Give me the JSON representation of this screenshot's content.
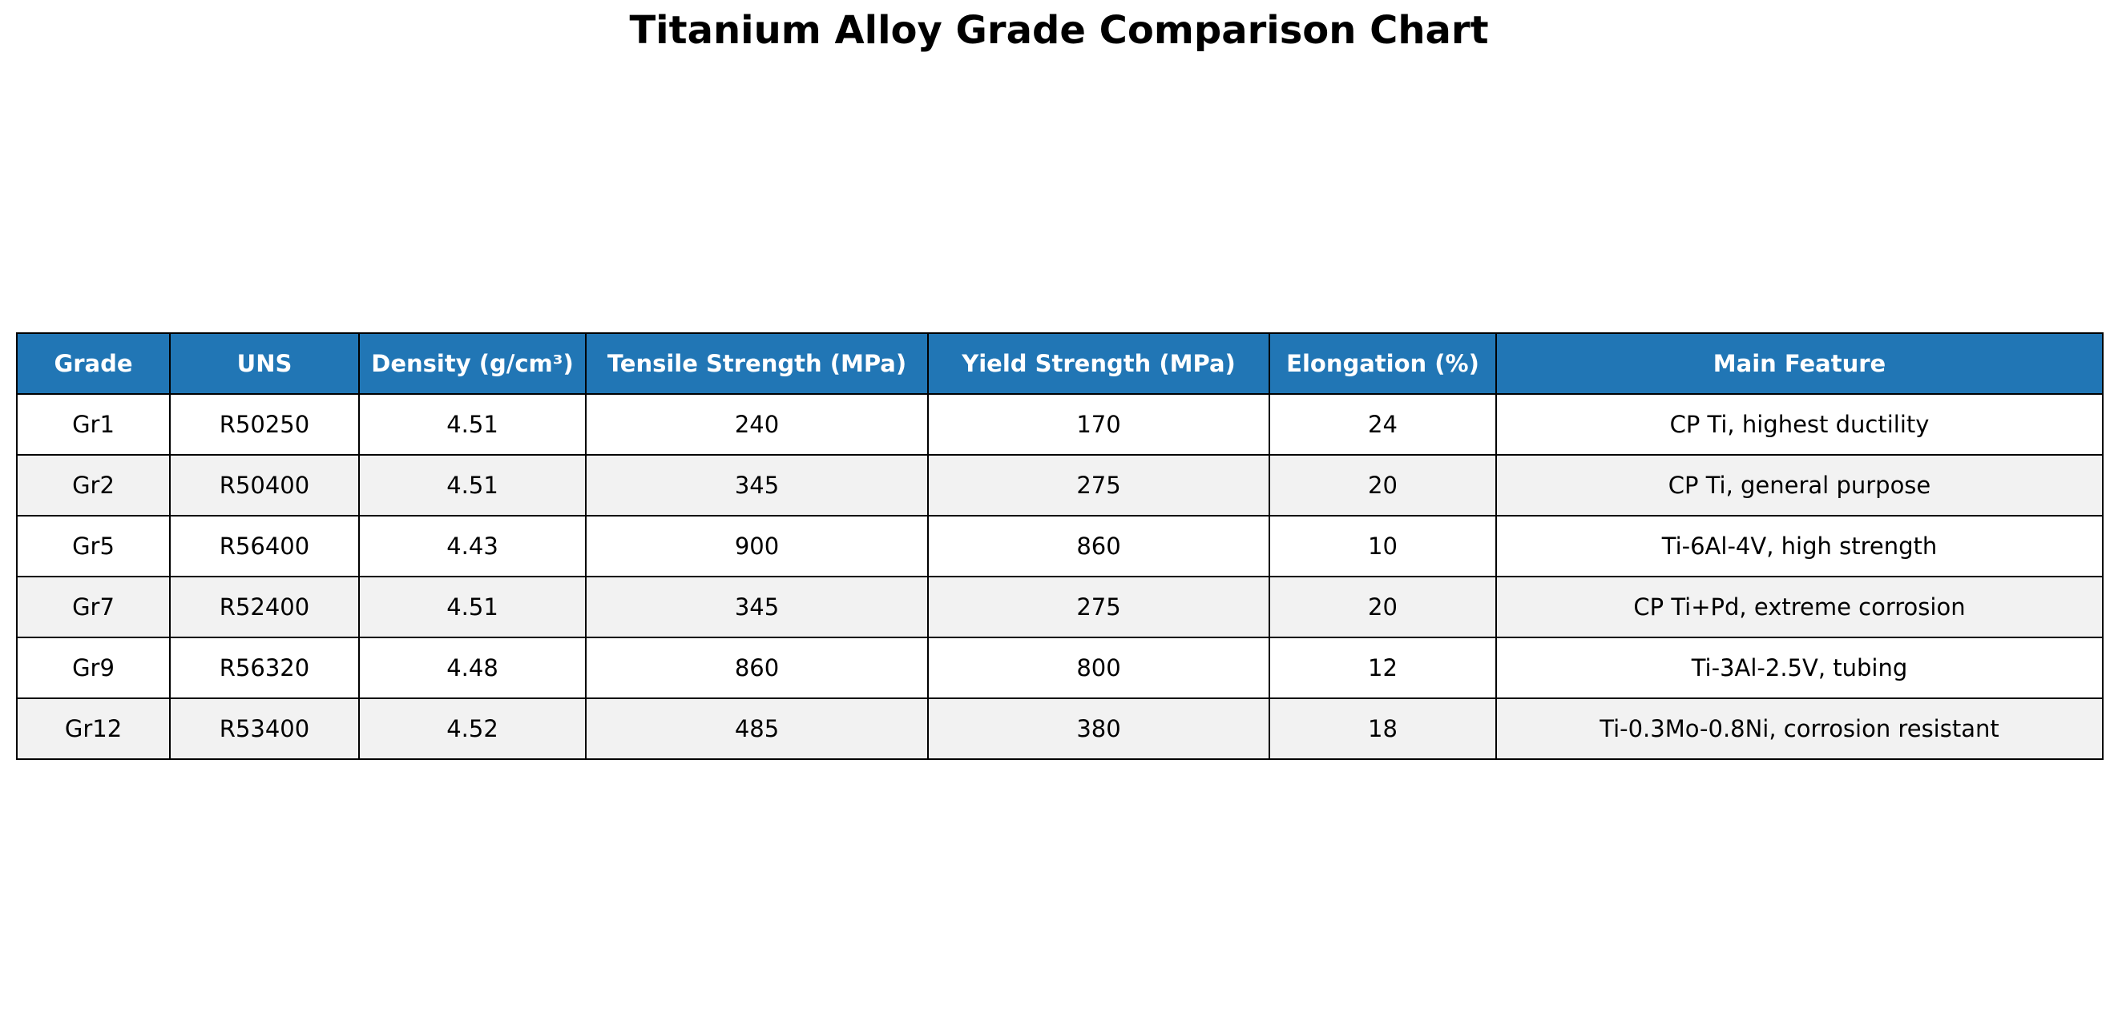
{
  "header": {
    "title": "Titanium Alloy Grade Comparison Chart"
  },
  "table": {
    "columns": [
      "Grade",
      "UNS",
      "Density (g/cm³)",
      "Tensile Strength (MPa)",
      "Yield Strength (MPa)",
      "Elongation (%)",
      "Main Feature"
    ],
    "rows": [
      [
        "Gr1",
        "R50250",
        4.51,
        240,
        170,
        24,
        "CP Ti, highest ductility"
      ],
      [
        "Gr2",
        "R50400",
        4.51,
        345,
        275,
        20,
        "CP Ti, general purpose"
      ],
      [
        "Gr5",
        "R56400",
        4.43,
        900,
        860,
        10,
        "Ti-6Al-4V, high strength"
      ],
      [
        "Gr7",
        "R52400",
        4.51,
        345,
        275,
        20,
        "CP Ti+Pd, extreme corrosion"
      ],
      [
        "Gr9",
        "R56320",
        4.48,
        860,
        800,
        12,
        "Ti-3Al-2.5V, tubing"
      ],
      [
        "Gr12",
        "R53400",
        4.52,
        485,
        380,
        18,
        "Ti-0.3Mo-0.8Ni, corrosion resistant"
      ]
    ]
  }
}
